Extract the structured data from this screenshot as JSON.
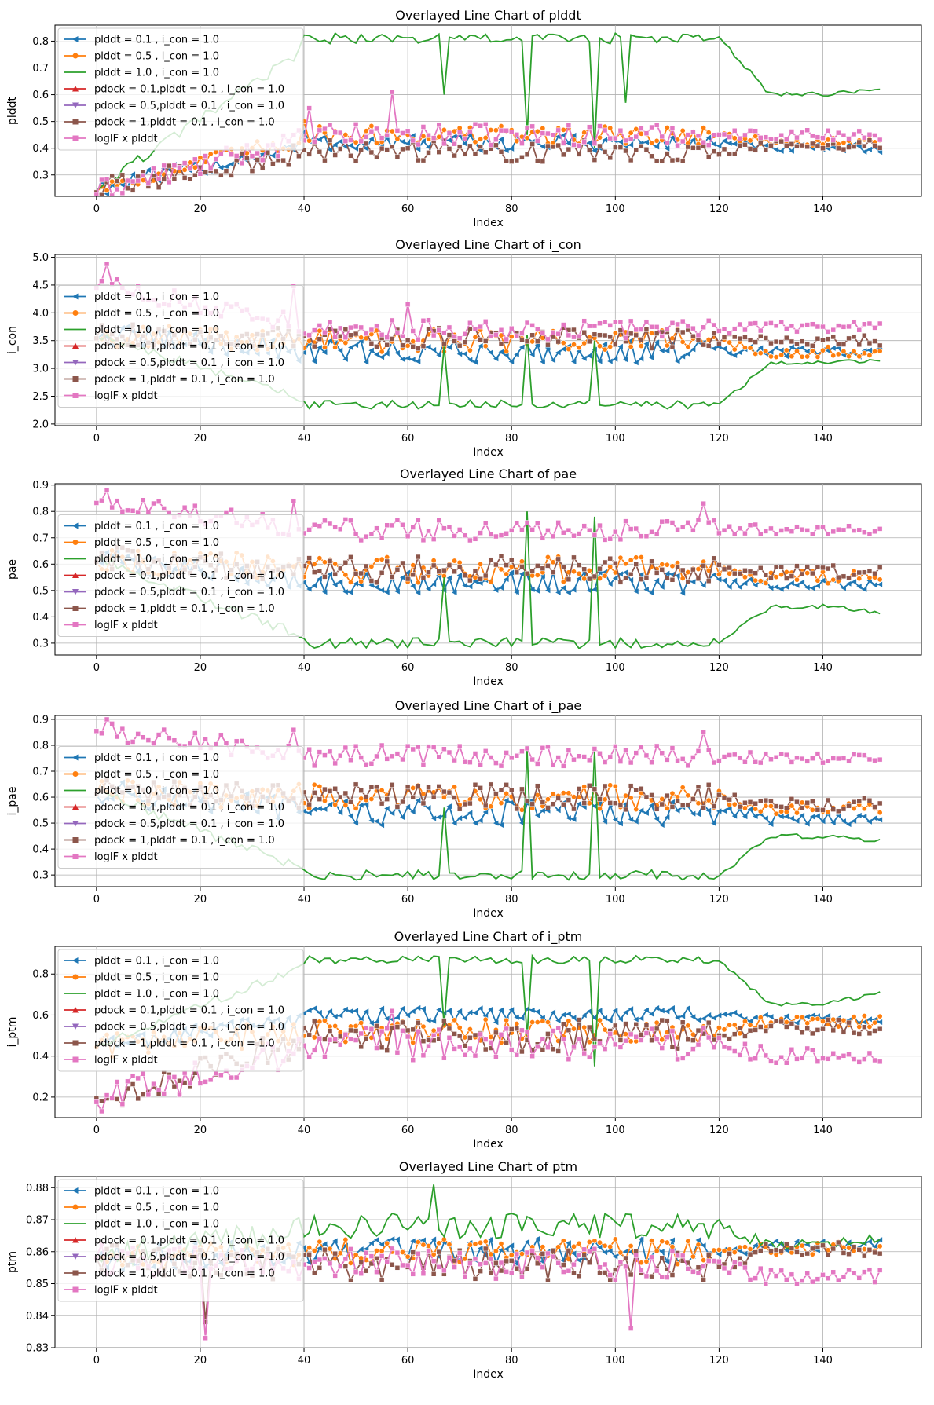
{
  "legend_entries": [
    "plddt = 0.1 , i_con = 1.0",
    "plddt = 0.5 , i_con = 1.0",
    "plddt = 1.0 , i_con = 1.0",
    "pdock = 0.1,plddt = 0.1 , i_con = 1.0",
    "pdock = 0.5,plddt = 0.1 , i_con = 1.0",
    "pdock = 1,plddt = 0.1 , i_con = 1.0",
    "logIF x plddt"
  ],
  "series_style": [
    {
      "color": "#1f77b4",
      "marker": "tri-left"
    },
    {
      "color": "#ff7f0e",
      "marker": "circle"
    },
    {
      "color": "#2ca02c",
      "marker": "none"
    },
    {
      "color": "#d62728",
      "marker": "tri-up"
    },
    {
      "color": "#9467bd",
      "marker": "tri-down"
    },
    {
      "color": "#8c564b",
      "marker": "square"
    },
    {
      "color": "#e377c2",
      "marker": "square"
    }
  ],
  "chart_data": [
    {
      "type": "line",
      "title": "Overlayed Line Chart of plddt",
      "xlabel": "Index",
      "ylabel": "plddt",
      "xlim": [
        -8,
        159
      ],
      "ylim": [
        0.22,
        0.86
      ],
      "xticks": [
        0,
        20,
        40,
        60,
        80,
        100,
        120,
        140
      ],
      "yticks": [
        0.3,
        0.4,
        0.5,
        0.6,
        0.7,
        0.8
      ],
      "tick_format": 1,
      "legend_loc": "upper-left",
      "series_summary": [
        {
          "name": "plddt = 0.1 , i_con = 1.0",
          "start": 0.25,
          "level": 0.42,
          "late": 0.4,
          "noise": 0.03,
          "glitch_high": 0.46
        },
        {
          "name": "plddt = 0.5 , i_con = 1.0",
          "start": 0.25,
          "level": 0.45,
          "late": 0.42,
          "noise": 0.035,
          "glitch_high": 0.5
        },
        {
          "name": "plddt = 1.0 , i_con = 1.0",
          "start": 0.25,
          "level": 0.81,
          "late": 0.6,
          "end": 0.62,
          "noise": 0.02,
          "dips": [
            [
              67,
              0.6
            ],
            [
              83,
              0.45
            ],
            [
              96,
              0.4
            ],
            [
              102,
              0.57
            ]
          ]
        },
        {
          "name": "pdock = 1,plddt = 0.1 , i_con = 1.0",
          "start": 0.25,
          "level": 0.39,
          "late": 0.41,
          "noise": 0.04
        },
        {
          "name": "logIF x plddt",
          "start": 0.24,
          "level": 0.45,
          "late": 0.45,
          "noise": 0.04,
          "peaks": [
            [
              57,
              0.61
            ],
            [
              41,
              0.55
            ]
          ]
        }
      ]
    },
    {
      "type": "line",
      "title": "Overlayed Line Chart of i_con",
      "xlabel": "Index",
      "ylabel": "i_con",
      "xlim": [
        -8,
        159
      ],
      "ylim": [
        1.97,
        5.05
      ],
      "xticks": [
        0,
        20,
        40,
        60,
        80,
        100,
        120,
        140
      ],
      "yticks": [
        2.0,
        2.5,
        3.0,
        3.5,
        4.0,
        4.5,
        5.0
      ],
      "tick_format": 1,
      "legend_loc": "center-left",
      "series_summary": [
        {
          "name": "plddt = 0.1 , i_con = 1.0",
          "start": 3.6,
          "level": 3.3,
          "late": 3.3,
          "noise": 0.2
        },
        {
          "name": "plddt = 0.5 , i_con = 1.0",
          "start": 3.6,
          "level": 3.5,
          "late": 3.3,
          "noise": 0.2
        },
        {
          "name": "plddt = 1.0 , i_con = 1.0",
          "start": 3.6,
          "level": 2.35,
          "late": 3.1,
          "end": 3.15,
          "noise": 0.08,
          "spikes": [
            [
              67,
              3.4
            ],
            [
              83,
              3.6
            ],
            [
              96,
              3.5
            ]
          ]
        },
        {
          "name": "pdock = 1,plddt = 0.1 , i_con = 1.0",
          "start": 3.6,
          "level": 3.55,
          "late": 3.5,
          "noise": 0.2
        },
        {
          "name": "logIF x plddt",
          "start": 4.5,
          "level": 3.7,
          "late": 3.75,
          "noise": 0.18,
          "peaks": [
            [
              2,
              4.88
            ],
            [
              38,
              4.48
            ],
            [
              60,
              4.15
            ]
          ]
        }
      ]
    },
    {
      "type": "line",
      "title": "Overlayed Line Chart of pae",
      "xlabel": "Index",
      "ylabel": "pae",
      "xlim": [
        -8,
        159
      ],
      "ylim": [
        0.255,
        0.905
      ],
      "xticks": [
        0,
        20,
        40,
        60,
        80,
        100,
        120,
        140
      ],
      "yticks": [
        0.3,
        0.4,
        0.5,
        0.6,
        0.7,
        0.8,
        0.9
      ],
      "tick_format": 1,
      "legend_loc": "center-left",
      "series_summary": [
        {
          "name": "plddt = 0.1 , i_con = 1.0",
          "start": 0.62,
          "level": 0.53,
          "late": 0.52,
          "noise": 0.04
        },
        {
          "name": "plddt = 0.5 , i_con = 1.0",
          "start": 0.62,
          "level": 0.58,
          "late": 0.55,
          "noise": 0.05
        },
        {
          "name": "plddt = 1.0 , i_con = 1.0",
          "start": 0.62,
          "level": 0.3,
          "late": 0.44,
          "end": 0.42,
          "noise": 0.02,
          "spikes": [
            [
              67,
              0.55
            ],
            [
              83,
              0.8
            ],
            [
              96,
              0.78
            ]
          ]
        },
        {
          "name": "pdock = 1,plddt = 0.1 , i_con = 1.0",
          "start": 0.62,
          "level": 0.58,
          "late": 0.57,
          "noise": 0.05
        },
        {
          "name": "logIF x plddt",
          "start": 0.84,
          "level": 0.73,
          "late": 0.73,
          "noise": 0.04,
          "peaks": [
            [
              2,
              0.88
            ],
            [
              38,
              0.84
            ],
            [
              117,
              0.83
            ]
          ]
        }
      ]
    },
    {
      "type": "line",
      "title": "Overlayed Line Chart of i_pae",
      "xlabel": "Index",
      "ylabel": "i_pae",
      "xlim": [
        -8,
        159
      ],
      "ylim": [
        0.255,
        0.915
      ],
      "xticks": [
        0,
        20,
        40,
        60,
        80,
        100,
        120,
        140
      ],
      "yticks": [
        0.3,
        0.4,
        0.5,
        0.6,
        0.7,
        0.8,
        0.9
      ],
      "tick_format": 1,
      "legend_loc": "center-left",
      "series_summary": [
        {
          "name": "plddt = 0.1 , i_con = 1.0",
          "start": 0.62,
          "level": 0.54,
          "late": 0.52,
          "noise": 0.05
        },
        {
          "name": "plddt = 0.5 , i_con = 1.0",
          "start": 0.62,
          "level": 0.6,
          "late": 0.56,
          "noise": 0.05
        },
        {
          "name": "plddt = 1.0 , i_con = 1.0",
          "start": 0.62,
          "level": 0.3,
          "late": 0.45,
          "end": 0.43,
          "noise": 0.02,
          "spikes": [
            [
              67,
              0.56
            ],
            [
              83,
              0.78
            ],
            [
              96,
              0.78
            ]
          ]
        },
        {
          "name": "pdock = 1,plddt = 0.1 , i_con = 1.0",
          "start": 0.62,
          "level": 0.6,
          "late": 0.57,
          "noise": 0.05
        },
        {
          "name": "logIF x plddt",
          "start": 0.86,
          "level": 0.76,
          "late": 0.75,
          "noise": 0.04,
          "peaks": [
            [
              2,
              0.9
            ],
            [
              38,
              0.86
            ],
            [
              117,
              0.85
            ]
          ]
        }
      ]
    },
    {
      "type": "line",
      "title": "Overlayed Line Chart of i_ptm",
      "xlabel": "Index",
      "ylabel": "i_ptm",
      "xlim": [
        -8,
        159
      ],
      "ylim": [
        0.1,
        0.935
      ],
      "xticks": [
        0,
        20,
        40,
        60,
        80,
        100,
        120,
        140
      ],
      "yticks": [
        0.2,
        0.4,
        0.6,
        0.8
      ],
      "tick_format": 1,
      "legend_loc": "upper-left",
      "series_summary": [
        {
          "name": "plddt = 0.1 , i_con = 1.0",
          "start": 0.45,
          "level": 0.6,
          "late": 0.58,
          "noise": 0.04
        },
        {
          "name": "plddt = 0.5 , i_con = 1.0",
          "start": 0.45,
          "level": 0.52,
          "late": 0.57,
          "noise": 0.06
        },
        {
          "name": "plddt = 1.0 , i_con = 1.0",
          "start": 0.45,
          "level": 0.87,
          "late": 0.65,
          "end": 0.71,
          "noise": 0.02,
          "dips": [
            [
              67,
              0.55
            ],
            [
              83,
              0.5
            ],
            [
              96,
              0.35
            ]
          ]
        },
        {
          "name": "pdock = 1,plddt = 0.1 , i_con = 1.0",
          "start": 0.2,
          "level": 0.5,
          "late": 0.54,
          "noise": 0.08
        },
        {
          "name": "logIF x plddt",
          "start": 0.18,
          "level": 0.46,
          "late": 0.4,
          "noise": 0.08,
          "peaks": [
            [
              57,
              0.62
            ]
          ]
        }
      ]
    },
    {
      "type": "line",
      "title": "Overlayed Line Chart of ptm",
      "xlabel": "Index",
      "ylabel": "ptm",
      "xlim": [
        -8,
        159
      ],
      "ylim": [
        0.83,
        0.8835
      ],
      "xticks": [
        0,
        20,
        40,
        60,
        80,
        100,
        120,
        140
      ],
      "yticks": [
        0.83,
        0.84,
        0.85,
        0.86,
        0.87,
        0.88
      ],
      "tick_format": 2,
      "legend_loc": "upper-left",
      "series_summary": [
        {
          "name": "plddt = 0.1 , i_con = 1.0",
          "start": 0.858,
          "level": 0.86,
          "late": 0.862,
          "noise": 0.004
        },
        {
          "name": "plddt = 0.5 , i_con = 1.0",
          "start": 0.858,
          "level": 0.86,
          "late": 0.861,
          "noise": 0.004
        },
        {
          "name": "plddt = 1.0 , i_con = 1.0",
          "start": 0.858,
          "level": 0.868,
          "late": 0.862,
          "end": 0.864,
          "noise": 0.004,
          "peaks": [
            [
              65,
              0.881
            ]
          ]
        },
        {
          "name": "pdock = 1,plddt = 0.1 , i_con = 1.0",
          "start": 0.858,
          "level": 0.856,
          "late": 0.861,
          "noise": 0.005,
          "dips": [
            [
              21,
              0.838
            ]
          ]
        },
        {
          "name": "logIF x plddt",
          "start": 0.858,
          "level": 0.856,
          "late": 0.852,
          "noise": 0.005,
          "dips": [
            [
              21,
              0.833
            ],
            [
              103,
              0.836
            ]
          ]
        }
      ]
    }
  ]
}
